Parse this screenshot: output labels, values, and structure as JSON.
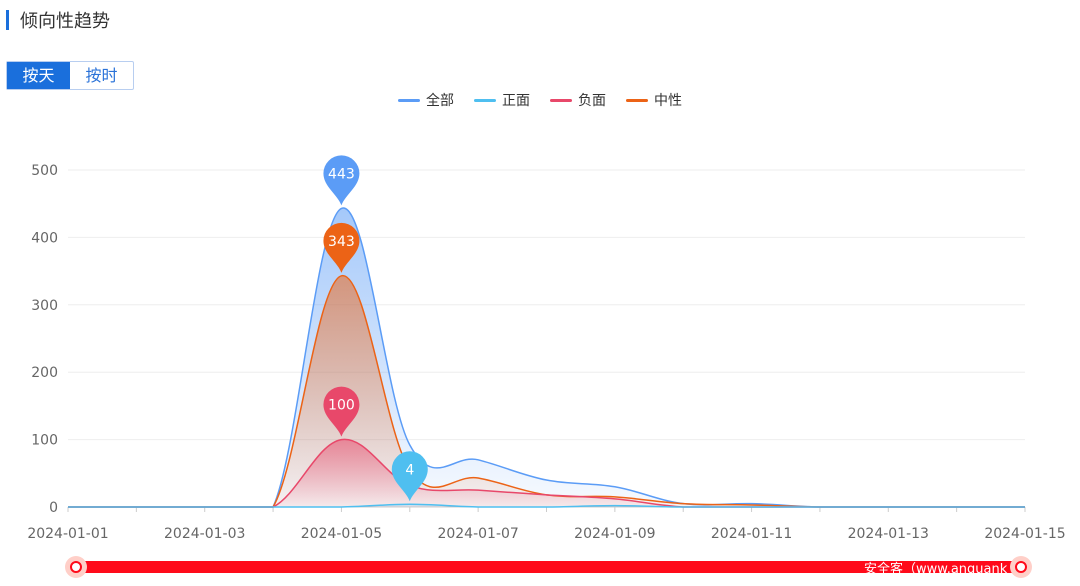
{
  "header": {
    "title": "倾向性趋势"
  },
  "toggle": {
    "day": "按天",
    "hour": "按时"
  },
  "watermark": "安全客（www.anquank",
  "chart_data": {
    "type": "area",
    "x": [
      "2024-01-01",
      "2024-01-02",
      "2024-01-03",
      "2024-01-04",
      "2024-01-05",
      "2024-01-06",
      "2024-01-07",
      "2024-01-08",
      "2024-01-09",
      "2024-01-10",
      "2024-01-11",
      "2024-01-12",
      "2024-01-13",
      "2024-01-14",
      "2024-01-15"
    ],
    "xticks": [
      "2024-01-01",
      "2024-01-03",
      "2024-01-05",
      "2024-01-07",
      "2024-01-09",
      "2024-01-11",
      "2024-01-13",
      "2024-01-15"
    ],
    "yticks": [
      "0",
      "100",
      "200",
      "300",
      "400",
      "500"
    ],
    "ylim": [
      0,
      500
    ],
    "series": [
      {
        "name": "全部",
        "color": "#5b9cf6",
        "values": [
          0,
          0,
          0,
          0,
          443,
          92,
          70,
          40,
          30,
          5,
          5,
          0,
          0,
          0,
          0
        ],
        "max_label": "443"
      },
      {
        "name": "正面",
        "color": "#4fbff0",
        "values": [
          0,
          0,
          0,
          0,
          0,
          4,
          0,
          0,
          2,
          0,
          0,
          0,
          0,
          0,
          0
        ],
        "max_label": "4"
      },
      {
        "name": "负面",
        "color": "#e8486a",
        "values": [
          0,
          0,
          0,
          0,
          100,
          32,
          25,
          18,
          12,
          0,
          0,
          0,
          0,
          0,
          0
        ],
        "max_label": "100"
      },
      {
        "name": "中性",
        "color": "#ec6316",
        "values": [
          0,
          0,
          0,
          0,
          343,
          55,
          43,
          18,
          15,
          5,
          3,
          0,
          0,
          0,
          0
        ],
        "max_label": "343"
      }
    ],
    "legend_position": "top-center",
    "grid": true
  }
}
